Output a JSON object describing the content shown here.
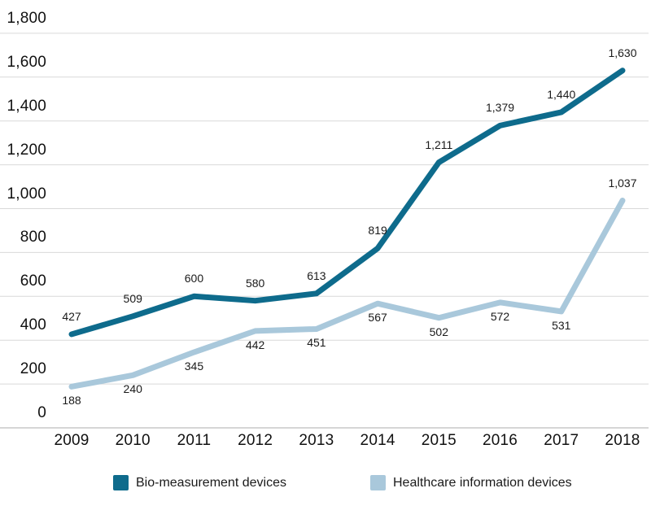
{
  "chart_data": {
    "type": "line",
    "x": [
      "2009",
      "2010",
      "2011",
      "2012",
      "2013",
      "2014",
      "2015",
      "2016",
      "2017",
      "2018"
    ],
    "series": [
      {
        "name": "Bio-measurement devices",
        "color": "#0e6b8c",
        "values": [
          427,
          509,
          600,
          580,
          613,
          819,
          1211,
          1379,
          1440,
          1630
        ],
        "labels": [
          "427",
          "509",
          "600",
          "580",
          "613",
          "819",
          "1,211",
          "1,379",
          "1,440",
          "1,630"
        ],
        "label_sides": [
          "above",
          "above",
          "above",
          "above",
          "above",
          "above",
          "above",
          "above",
          "above",
          "above"
        ]
      },
      {
        "name": "Healthcare information devices",
        "color": "#a9c8db",
        "values": [
          188,
          240,
          345,
          442,
          451,
          567,
          502,
          572,
          531,
          1037
        ],
        "labels": [
          "188",
          "240",
          "345",
          "442",
          "451",
          "567",
          "502",
          "572",
          "531",
          "1,037"
        ],
        "label_sides": [
          "below",
          "below",
          "below",
          "below",
          "below",
          "below",
          "below",
          "below",
          "below",
          "above"
        ]
      }
    ],
    "title": "",
    "xlabel": "",
    "ylabel": "",
    "ylim": [
      0,
      1800
    ],
    "ytick_step": 200,
    "ytick_labels": [
      "0",
      "200",
      "400",
      "600",
      "800",
      "1,000",
      "1,200",
      "1,400",
      "1,600",
      "1,800"
    ],
    "grid": "horizontal",
    "legend_position": "bottom",
    "grid_color": "#d9d9d9",
    "axis_color": "#d6d6d6",
    "background_color": "#ffffff",
    "text_color": "#111111"
  }
}
